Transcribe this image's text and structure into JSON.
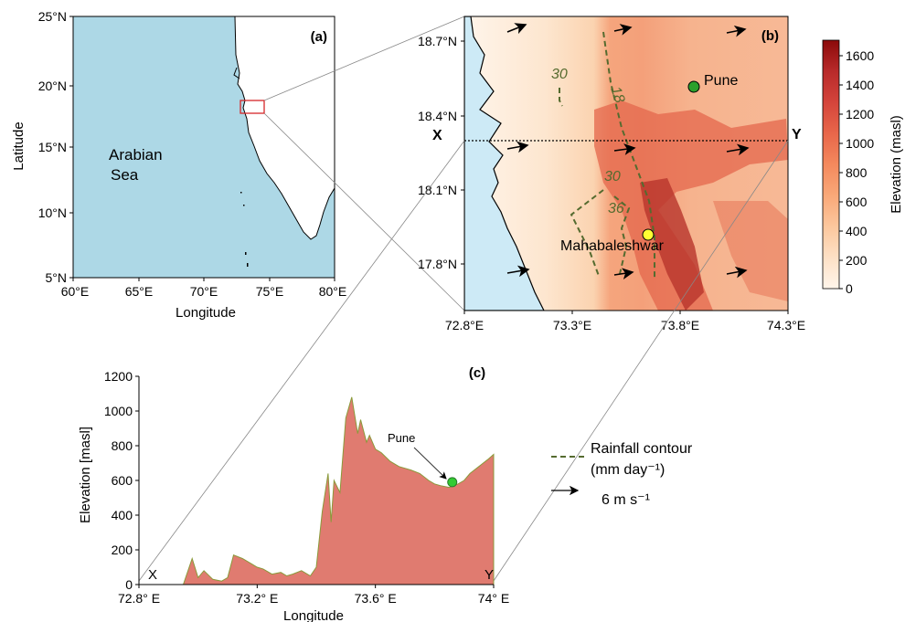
{
  "panel_a": {
    "label": "(a)",
    "sea_label_line1": "Arabian",
    "sea_label_line2": "Sea",
    "xlabel": "Longitude",
    "ylabel": "Latitude",
    "x_ticks": [
      "60°E",
      "65°E",
      "70°E",
      "75°E",
      "80°E"
    ],
    "y_ticks": [
      "25°N",
      "20°N",
      "15°N",
      "10°N",
      "5°N"
    ],
    "sea_color": "#add8e6",
    "land_color": "#ffffff",
    "box_color": "#d62728"
  },
  "panel_b": {
    "label": "(b)",
    "x_ticks": [
      "72.8°E",
      "73.3°E",
      "73.8°E",
      "74.3°E"
    ],
    "y_ticks": [
      "18.7°N",
      "18.4°N",
      "18.1°N",
      "17.8°N"
    ],
    "section_start_label": "X",
    "section_end_label": "Y",
    "pune_label": "Pune",
    "mahabaleshwar_label": "Mahabaleshwar",
    "contour_labels": [
      "30",
      "18",
      "30",
      "36"
    ],
    "pune_marker_color": "#2ca02c",
    "mahabaleshwar_marker_color": "#ffff33",
    "contour_color": "#556b2f"
  },
  "colorbar": {
    "title": "Elevation (masl)",
    "ticks": [
      "1600",
      "1400",
      "1200",
      "1000",
      "800",
      "600",
      "400",
      "200",
      "0"
    ],
    "colors": [
      "#fff5eb",
      "#fde0c5",
      "#fcc79d",
      "#f9a878",
      "#f4895d",
      "#e8664a",
      "#d4443b",
      "#b82a2a",
      "#8b0a0a"
    ]
  },
  "panel_c": {
    "label": "(c)",
    "ylabel": "Elevation [masl]",
    "xlabel": "Longitude",
    "x_ticks": [
      "72.8° E",
      "73.2° E",
      "73.6° E",
      "74° E"
    ],
    "y_ticks": [
      "1200",
      "1000",
      "800",
      "600",
      "400",
      "200",
      "0"
    ],
    "start_label": "X",
    "end_label": "Y",
    "pune_annotation": "Pune",
    "fill_color": "#e07b70"
  },
  "legend": {
    "contour_line1": "Rainfall contour",
    "contour_line2": "(mm day⁻¹)",
    "wind_label": "6 m s⁻¹"
  },
  "chart_data": {
    "type": "area",
    "title": "",
    "xlabel": "Longitude",
    "ylabel": "Elevation [masl]",
    "xlim": [
      72.8,
      74.0
    ],
    "ylim": [
      0,
      1200
    ],
    "x": [
      72.8,
      72.95,
      72.98,
      73.0,
      73.02,
      73.05,
      73.08,
      73.1,
      73.12,
      73.15,
      73.18,
      73.2,
      73.22,
      73.25,
      73.28,
      73.3,
      73.32,
      73.35,
      73.38,
      73.4,
      73.42,
      73.44,
      73.45,
      73.46,
      73.48,
      73.5,
      73.52,
      73.54,
      73.55,
      73.57,
      73.58,
      73.6,
      73.62,
      73.65,
      73.68,
      73.7,
      73.72,
      73.75,
      73.78,
      73.8,
      73.82,
      73.85,
      73.88,
      73.9,
      73.92,
      73.95,
      73.98,
      74.0
    ],
    "y": [
      0,
      0,
      150,
      40,
      80,
      30,
      20,
      40,
      170,
      150,
      120,
      100,
      90,
      60,
      70,
      50,
      60,
      80,
      50,
      100,
      420,
      640,
      360,
      600,
      530,
      960,
      1080,
      870,
      950,
      820,
      860,
      780,
      760,
      710,
      680,
      670,
      660,
      640,
      600,
      580,
      570,
      560,
      580,
      600,
      640,
      680,
      720,
      750
    ],
    "annotations": [
      {
        "text": "Pune",
        "x": 73.86,
        "y": 590
      }
    ]
  }
}
